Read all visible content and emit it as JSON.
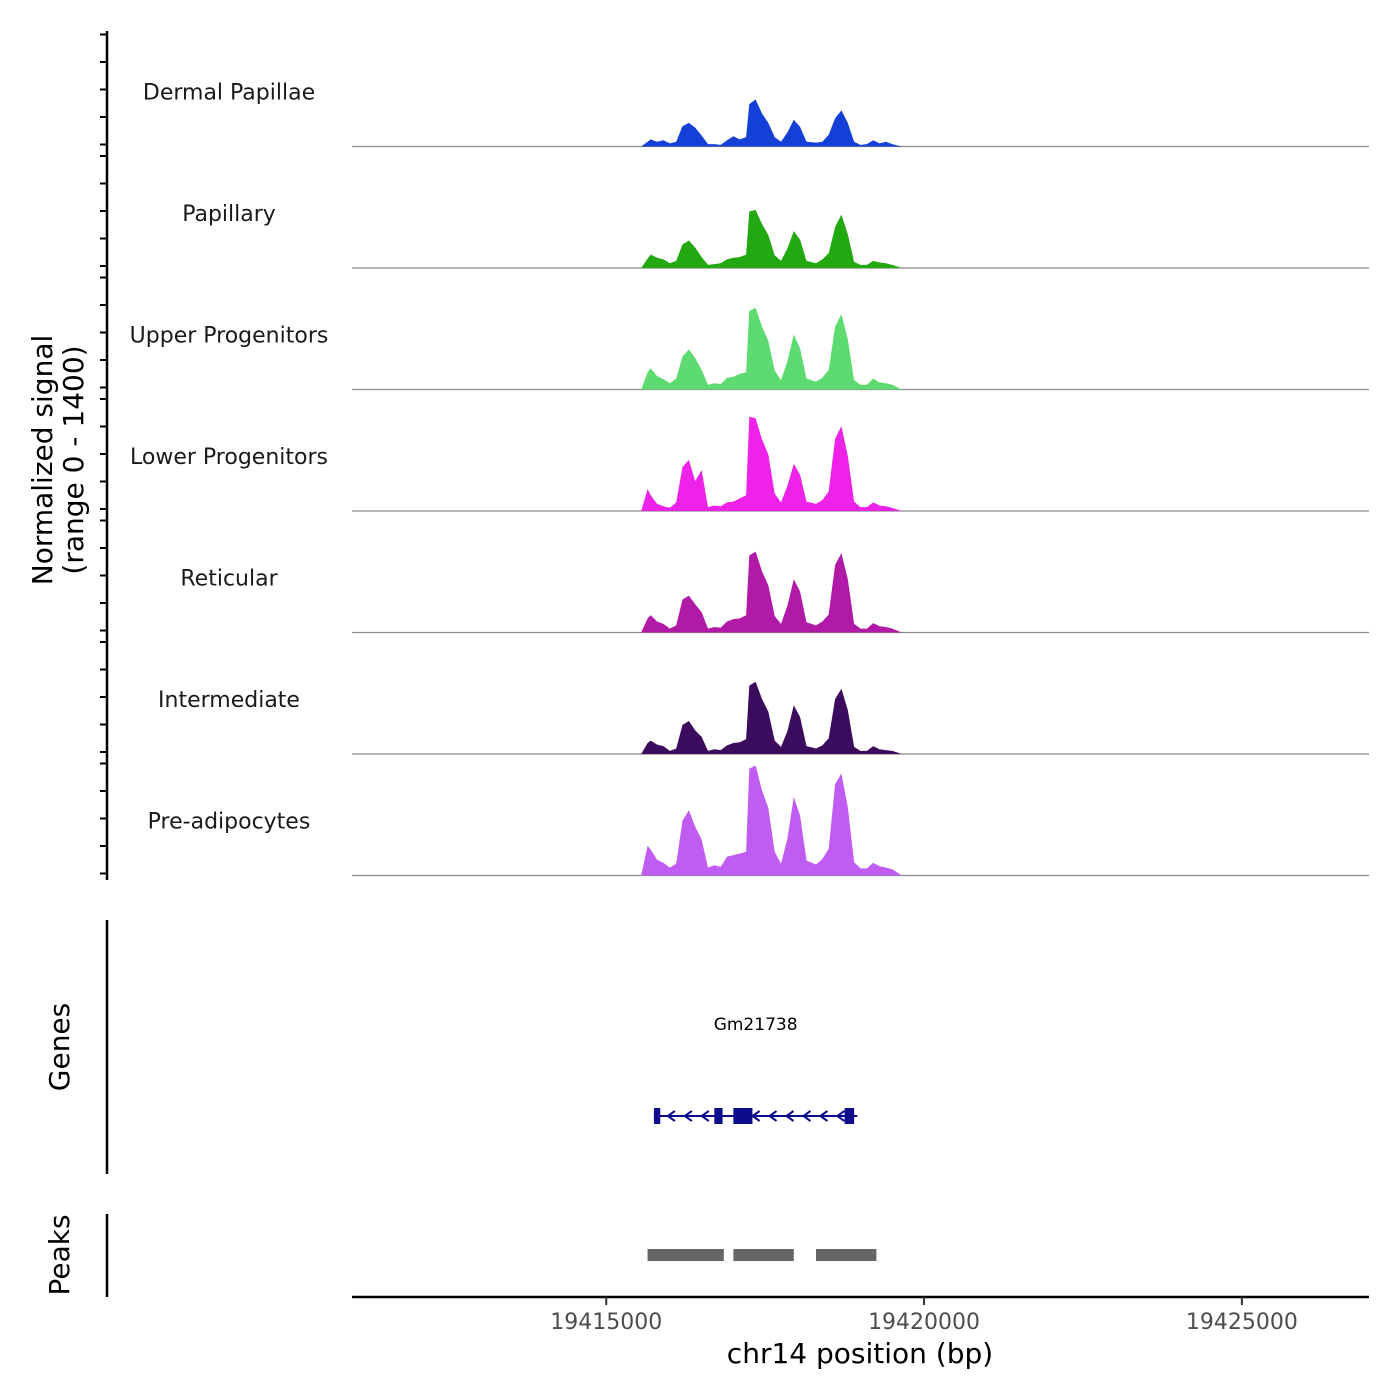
{
  "chart_data": {
    "type": "area",
    "title": "",
    "chromosome": "chr14",
    "xlabel": "chr14 position (bp)",
    "xlim": [
      19411000,
      19427000
    ],
    "xticks": [
      19415000,
      19420000,
      19425000
    ],
    "xtick_labels": [
      "19415000",
      "19420000",
      "19425000"
    ],
    "coverage_ylabel_line1": "Normalized signal",
    "coverage_ylabel_line2": "(range 0 - 1400)",
    "ylim": [
      0,
      1400
    ],
    "profile_positions": [
      19415550,
      19415650,
      19415700,
      19415800,
      19415900,
      19416000,
      19416100,
      19416200,
      19416300,
      19416400,
      19416500,
      19416600,
      19416700,
      19416800,
      19416900,
      19417000,
      19417100,
      19417200,
      19417250,
      19417350,
      19417450,
      19417550,
      19417650,
      19417750,
      19417850,
      19417950,
      19418050,
      19418150,
      19418300,
      19418400,
      19418500,
      19418600,
      19418700,
      19418800,
      19418900,
      19419000,
      19419100,
      19419200,
      19419300,
      19419400,
      19419500,
      19419650
    ],
    "series": [
      {
        "name": "Dermal Papillae",
        "color": "#1540d8",
        "values": [
          0,
          60,
          90,
          60,
          80,
          40,
          60,
          260,
          300,
          240,
          140,
          30,
          30,
          20,
          80,
          130,
          90,
          120,
          540,
          600,
          420,
          300,
          120,
          60,
          180,
          340,
          250,
          60,
          50,
          60,
          150,
          360,
          460,
          300,
          60,
          20,
          30,
          80,
          40,
          60,
          30,
          0
        ]
      },
      {
        "name": "Papillary",
        "color": "#22a810",
        "values": [
          0,
          120,
          170,
          130,
          110,
          60,
          90,
          300,
          350,
          260,
          140,
          40,
          50,
          60,
          110,
          130,
          140,
          170,
          720,
          740,
          560,
          420,
          160,
          90,
          250,
          470,
          360,
          90,
          60,
          110,
          190,
          520,
          680,
          430,
          80,
          40,
          40,
          90,
          70,
          60,
          40,
          0
        ]
      },
      {
        "name": "Upper Progenitors",
        "color": "#5ddb70",
        "values": [
          0,
          220,
          270,
          170,
          130,
          80,
          140,
          420,
          510,
          400,
          250,
          60,
          80,
          70,
          150,
          160,
          200,
          220,
          1000,
          1040,
          800,
          620,
          240,
          120,
          360,
          700,
          520,
          140,
          100,
          150,
          250,
          800,
          960,
          640,
          120,
          60,
          60,
          140,
          90,
          80,
          60,
          0
        ]
      },
      {
        "name": "Lower Progenitors",
        "color": "#ee22e8",
        "values": [
          0,
          280,
          200,
          90,
          60,
          40,
          110,
          560,
          650,
          380,
          520,
          50,
          70,
          60,
          110,
          120,
          160,
          200,
          1200,
          1180,
          910,
          720,
          220,
          110,
          320,
          600,
          460,
          120,
          90,
          140,
          250,
          920,
          1080,
          700,
          120,
          50,
          50,
          110,
          70,
          60,
          40,
          0
        ]
      },
      {
        "name": "Reticular",
        "color": "#b11aa6",
        "values": [
          0,
          180,
          220,
          140,
          110,
          50,
          90,
          420,
          470,
          360,
          260,
          50,
          70,
          60,
          140,
          170,
          180,
          220,
          980,
          1030,
          780,
          600,
          210,
          110,
          340,
          680,
          520,
          130,
          90,
          140,
          230,
          860,
          1010,
          680,
          110,
          50,
          50,
          120,
          80,
          70,
          50,
          0
        ]
      },
      {
        "name": "Intermediate",
        "color": "#3b0b5e",
        "values": [
          0,
          140,
          170,
          120,
          100,
          40,
          70,
          370,
          420,
          300,
          220,
          40,
          60,
          50,
          110,
          140,
          150,
          190,
          870,
          920,
          700,
          540,
          170,
          90,
          290,
          620,
          470,
          100,
          70,
          110,
          200,
          700,
          830,
          560,
          90,
          40,
          40,
          100,
          60,
          50,
          40,
          0
        ]
      },
      {
        "name": "Pre-adipocytes",
        "color": "#c05cf2",
        "values": [
          0,
          380,
          330,
          200,
          160,
          100,
          150,
          700,
          830,
          620,
          460,
          100,
          130,
          110,
          240,
          260,
          280,
          300,
          1360,
          1400,
          1080,
          860,
          300,
          150,
          470,
          1000,
          760,
          190,
          140,
          210,
          340,
          1160,
          1300,
          870,
          170,
          90,
          90,
          160,
          120,
          100,
          80,
          0
        ]
      }
    ],
    "genes_label": "Genes",
    "gene": {
      "name": "Gm21738",
      "strand": "-",
      "start": 19415750,
      "end": 19418950,
      "exons": [
        [
          19415750,
          19415850
        ],
        [
          19416700,
          19416830
        ],
        [
          19417000,
          19417300
        ],
        [
          19418750,
          19418900
        ]
      ]
    },
    "peaks_label": "Peaks",
    "peaks": [
      [
        19415650,
        19416850
      ],
      [
        19417000,
        19417950
      ],
      [
        19418300,
        19419250
      ]
    ]
  }
}
